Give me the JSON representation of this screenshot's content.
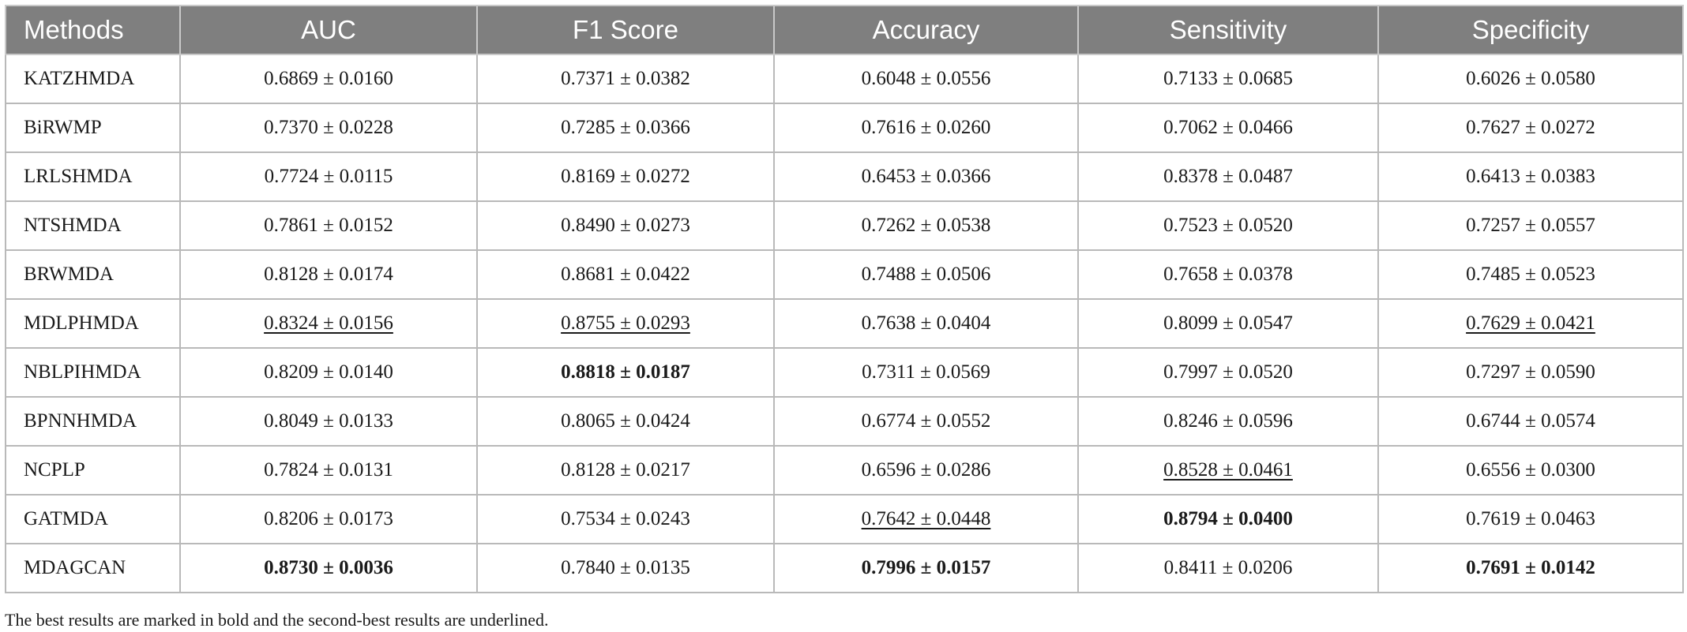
{
  "headers": [
    "Methods",
    "AUC",
    "F1 Score",
    "Accuracy",
    "Sensitivity",
    "Specificity"
  ],
  "rows": [
    {
      "method": "KATZHMDA",
      "cells": [
        {
          "text": "0.6869 ± 0.0160",
          "style": ""
        },
        {
          "text": "0.7371 ± 0.0382",
          "style": ""
        },
        {
          "text": "0.6048 ± 0.0556",
          "style": ""
        },
        {
          "text": "0.7133 ± 0.0685",
          "style": ""
        },
        {
          "text": "0.6026 ± 0.0580",
          "style": ""
        }
      ]
    },
    {
      "method": "BiRWMP",
      "cells": [
        {
          "text": "0.7370 ± 0.0228",
          "style": ""
        },
        {
          "text": "0.7285 ± 0.0366",
          "style": ""
        },
        {
          "text": "0.7616 ± 0.0260",
          "style": ""
        },
        {
          "text": "0.7062 ± 0.0466",
          "style": ""
        },
        {
          "text": "0.7627 ± 0.0272",
          "style": ""
        }
      ]
    },
    {
      "method": "LRLSHMDA",
      "cells": [
        {
          "text": "0.7724 ± 0.0115",
          "style": ""
        },
        {
          "text": "0.8169 ± 0.0272",
          "style": ""
        },
        {
          "text": "0.6453 ± 0.0366",
          "style": ""
        },
        {
          "text": "0.8378 ± 0.0487",
          "style": ""
        },
        {
          "text": "0.6413 ± 0.0383",
          "style": ""
        }
      ]
    },
    {
      "method": "NTSHMDA",
      "cells": [
        {
          "text": "0.7861 ± 0.0152",
          "style": ""
        },
        {
          "text": "0.8490 ± 0.0273",
          "style": ""
        },
        {
          "text": "0.7262 ± 0.0538",
          "style": ""
        },
        {
          "text": "0.7523 ± 0.0520",
          "style": ""
        },
        {
          "text": "0.7257 ± 0.0557",
          "style": ""
        }
      ]
    },
    {
      "method": "BRWMDA",
      "cells": [
        {
          "text": "0.8128 ± 0.0174",
          "style": ""
        },
        {
          "text": "0.8681 ± 0.0422",
          "style": ""
        },
        {
          "text": "0.7488 ± 0.0506",
          "style": ""
        },
        {
          "text": "0.7658 ± 0.0378",
          "style": ""
        },
        {
          "text": "0.7485 ± 0.0523",
          "style": ""
        }
      ]
    },
    {
      "method": "MDLPHMDA",
      "cells": [
        {
          "text": "0.8324 ± 0.0156",
          "style": "underline"
        },
        {
          "text": "0.8755 ± 0.0293",
          "style": "underline"
        },
        {
          "text": "0.7638 ± 0.0404",
          "style": ""
        },
        {
          "text": "0.8099 ± 0.0547",
          "style": ""
        },
        {
          "text": "0.7629 ± 0.0421",
          "style": "underline"
        }
      ]
    },
    {
      "method": "NBLPIHMDA",
      "cells": [
        {
          "text": "0.8209 ± 0.0140",
          "style": ""
        },
        {
          "text": "0.8818 ± 0.0187",
          "style": "bold"
        },
        {
          "text": "0.7311 ± 0.0569",
          "style": ""
        },
        {
          "text": "0.7997 ± 0.0520",
          "style": ""
        },
        {
          "text": "0.7297 ± 0.0590",
          "style": ""
        }
      ]
    },
    {
      "method": "BPNNHMDA",
      "cells": [
        {
          "text": "0.8049 ± 0.0133",
          "style": ""
        },
        {
          "text": "0.8065 ± 0.0424",
          "style": ""
        },
        {
          "text": "0.6774 ± 0.0552",
          "style": ""
        },
        {
          "text": "0.8246 ± 0.0596",
          "style": ""
        },
        {
          "text": "0.6744 ± 0.0574",
          "style": ""
        }
      ]
    },
    {
      "method": "NCPLP",
      "cells": [
        {
          "text": "0.7824 ± 0.0131",
          "style": ""
        },
        {
          "text": "0.8128 ± 0.0217",
          "style": ""
        },
        {
          "text": "0.6596 ± 0.0286",
          "style": ""
        },
        {
          "text": "0.8528 ± 0.0461",
          "style": "underline"
        },
        {
          "text": "0.6556 ± 0.0300",
          "style": ""
        }
      ]
    },
    {
      "method": "GATMDA",
      "cells": [
        {
          "text": "0.8206 ± 0.0173",
          "style": ""
        },
        {
          "text": "0.7534 ± 0.0243",
          "style": ""
        },
        {
          "text": "0.7642 ± 0.0448",
          "style": "underline"
        },
        {
          "text": "0.8794 ± 0.0400",
          "style": "bold"
        },
        {
          "text": "0.7619 ± 0.0463",
          "style": ""
        }
      ]
    },
    {
      "method": "MDAGCAN",
      "cells": [
        {
          "text": "0.8730 ± 0.0036",
          "style": "bold"
        },
        {
          "text": "0.7840 ± 0.0135",
          "style": ""
        },
        {
          "text": "0.7996 ± 0.0157",
          "style": "bold"
        },
        {
          "text": "0.8411 ± 0.0206",
          "style": ""
        },
        {
          "text": "0.7691 ± 0.0142",
          "style": "bold"
        }
      ]
    }
  ],
  "footnote": "The best results are marked in bold and the second-best results are underlined.",
  "colors": {
    "header_bg": "#7f7f7f",
    "header_text": "#ffffff",
    "grid": "#b9b9b9"
  }
}
